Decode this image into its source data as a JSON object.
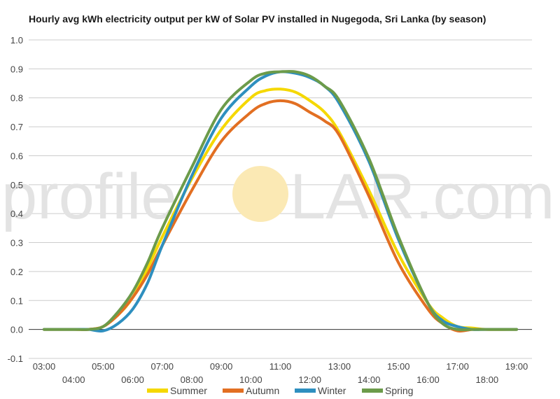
{
  "watermark": {
    "left": "profile",
    "right": "LAR.com",
    "sun_color": "#fbe9b4"
  },
  "chart_data": {
    "type": "line",
    "title": "Hourly avg kWh electricity output per kW of Solar PV installed in Nugegoda, Sri Lanka (by season)",
    "xlabel": "",
    "ylabel": "",
    "xlim": [
      3,
      19
    ],
    "ylim": [
      -0.1,
      1.0
    ],
    "y_ticks": [
      "-0.1",
      "0.0",
      "0.1",
      "0.2",
      "0.3",
      "0.4",
      "0.5",
      "0.6",
      "0.7",
      "0.8",
      "0.9",
      "1.0"
    ],
    "x_ticks": [
      "03:00",
      "04:00",
      "05:00",
      "06:00",
      "07:00",
      "08:00",
      "09:00",
      "10:00",
      "11:00",
      "12:00",
      "13:00",
      "14:00",
      "15:00",
      "16:00",
      "17:00",
      "18:00",
      "19:00"
    ],
    "grid": true,
    "legend_position": "bottom",
    "x": [
      3,
      4,
      4.5,
      5,
      5.5,
      6,
      6.5,
      7,
      8,
      9,
      10,
      10.5,
      11,
      11.5,
      12,
      12.5,
      13,
      14,
      15,
      16,
      16.5,
      17,
      17.5,
      18,
      19
    ],
    "series": [
      {
        "name": "Summer",
        "color": "#f5d800",
        "values": [
          0,
          0,
          0,
          0.01,
          0.05,
          0.11,
          0.21,
          0.32,
          0.52,
          0.69,
          0.8,
          0.825,
          0.83,
          0.82,
          0.79,
          0.75,
          0.68,
          0.48,
          0.26,
          0.09,
          0.04,
          0.01,
          0.005,
          0,
          0
        ]
      },
      {
        "name": "Autumn",
        "color": "#e26f22",
        "values": [
          0,
          0,
          0,
          0.01,
          0.05,
          0.11,
          0.19,
          0.29,
          0.48,
          0.65,
          0.75,
          0.78,
          0.79,
          0.78,
          0.75,
          0.72,
          0.67,
          0.46,
          0.23,
          0.07,
          0.02,
          -0.005,
          0,
          0,
          0
        ]
      },
      {
        "name": "Winter",
        "color": "#2e8fbf",
        "values": [
          0,
          0,
          0,
          -0.005,
          0.02,
          0.07,
          0.16,
          0.29,
          0.53,
          0.73,
          0.84,
          0.875,
          0.89,
          0.885,
          0.87,
          0.84,
          0.78,
          0.58,
          0.31,
          0.09,
          0.03,
          0.01,
          0,
          0,
          0
        ]
      },
      {
        "name": "Spring",
        "color": "#6c9b4a",
        "values": [
          0,
          0,
          0,
          0.01,
          0.06,
          0.13,
          0.23,
          0.35,
          0.56,
          0.76,
          0.86,
          0.885,
          0.89,
          0.89,
          0.875,
          0.84,
          0.79,
          0.59,
          0.32,
          0.09,
          0.02,
          0,
          0,
          0,
          0
        ]
      }
    ]
  }
}
